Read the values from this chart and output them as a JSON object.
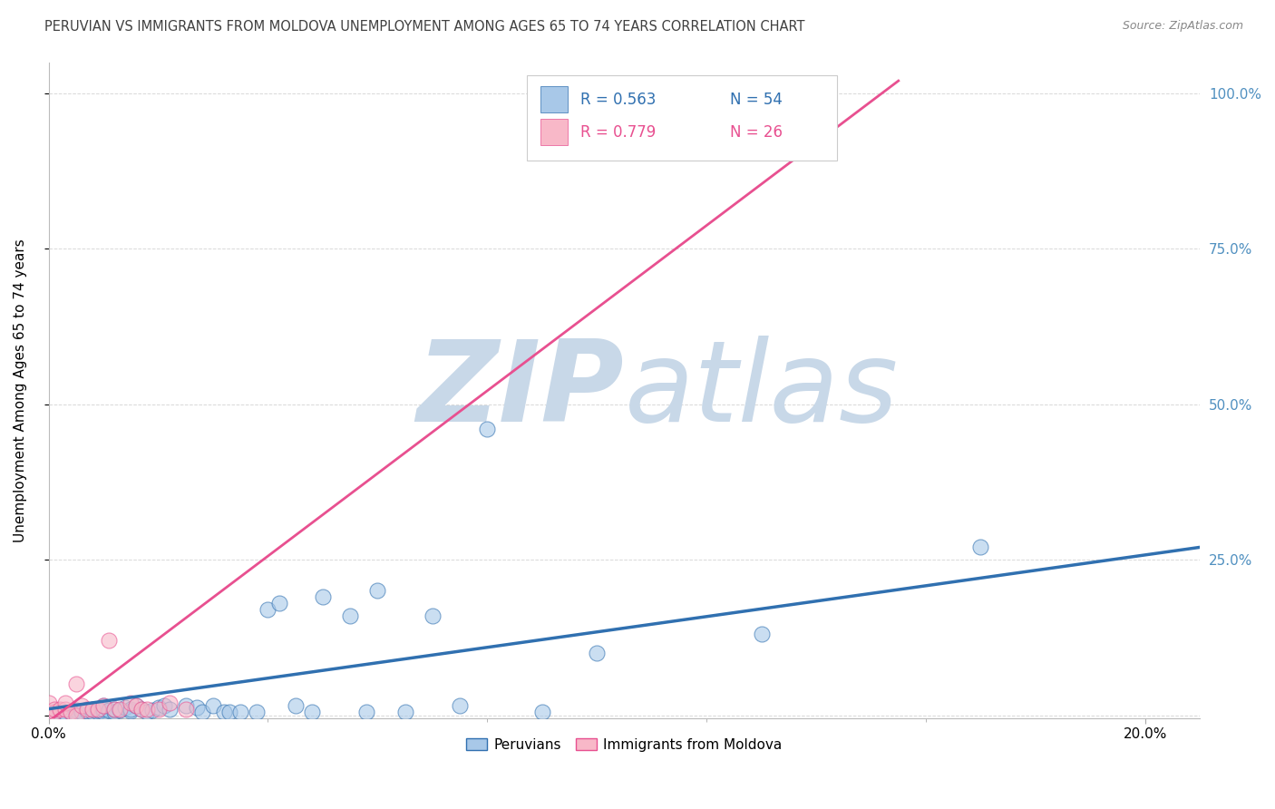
{
  "title": "PERUVIAN VS IMMIGRANTS FROM MOLDOVA UNEMPLOYMENT AMONG AGES 65 TO 74 YEARS CORRELATION CHART",
  "source": "Source: ZipAtlas.com",
  "ylabel": "Unemployment Among Ages 65 to 74 years",
  "x_tick_labels": [
    "0.0%",
    "20.0%"
  ],
  "x_ticks": [
    0.0,
    0.2
  ],
  "y_tick_labels_right": [
    "100.0%",
    "75.0%",
    "50.0%",
    "25.0%",
    ""
  ],
  "y_ticks": [
    1.0,
    0.75,
    0.5,
    0.25,
    0.0
  ],
  "xlim": [
    0.0,
    0.21
  ],
  "ylim": [
    -0.005,
    1.05
  ],
  "legend_r1": "R = 0.563",
  "legend_n1": "N = 54",
  "legend_r2": "R = 0.779",
  "legend_n2": "N = 26",
  "blue_color": "#a8c8e8",
  "blue_line_color": "#3070b0",
  "pink_color": "#f8b8c8",
  "pink_line_color": "#e85090",
  "watermark_zip": "ZIP",
  "watermark_atlas": "atlas",
  "watermark_color": "#c8d8e8",
  "background_color": "#ffffff",
  "grid_color": "#d8d8d8",
  "title_color": "#404040",
  "right_axis_color": "#5090c0",
  "peruvians_x": [
    0.0,
    0.001,
    0.002,
    0.003,
    0.004,
    0.005,
    0.005,
    0.006,
    0.007,
    0.008,
    0.008,
    0.009,
    0.009,
    0.01,
    0.01,
    0.01,
    0.011,
    0.012,
    0.012,
    0.013,
    0.014,
    0.015,
    0.015,
    0.016,
    0.017,
    0.018,
    0.019,
    0.02,
    0.021,
    0.022,
    0.025,
    0.027,
    0.028,
    0.03,
    0.032,
    0.033,
    0.035,
    0.038,
    0.04,
    0.042,
    0.045,
    0.048,
    0.05,
    0.055,
    0.058,
    0.06,
    0.065,
    0.07,
    0.075,
    0.08,
    0.09,
    0.1,
    0.13,
    0.17
  ],
  "peruvians_y": [
    0.0,
    0.005,
    0.002,
    0.003,
    0.005,
    0.008,
    0.003,
    0.005,
    0.006,
    0.005,
    0.01,
    0.005,
    0.008,
    0.005,
    0.01,
    0.015,
    0.008,
    0.005,
    0.01,
    0.008,
    0.012,
    0.006,
    0.01,
    0.015,
    0.01,
    0.005,
    0.008,
    0.012,
    0.015,
    0.01,
    0.015,
    0.012,
    0.005,
    0.015,
    0.005,
    0.005,
    0.005,
    0.005,
    0.17,
    0.18,
    0.015,
    0.005,
    0.19,
    0.16,
    0.005,
    0.2,
    0.005,
    0.16,
    0.015,
    0.46,
    0.005,
    0.1,
    0.13,
    0.27
  ],
  "moldova_x": [
    0.0,
    0.0,
    0.001,
    0.001,
    0.002,
    0.003,
    0.003,
    0.004,
    0.005,
    0.005,
    0.006,
    0.007,
    0.008,
    0.009,
    0.01,
    0.011,
    0.012,
    0.013,
    0.015,
    0.016,
    0.017,
    0.018,
    0.02,
    0.022,
    0.025,
    0.14
  ],
  "moldova_y": [
    0.005,
    0.02,
    0.005,
    0.01,
    0.01,
    0.01,
    0.02,
    0.005,
    0.0,
    0.05,
    0.015,
    0.01,
    0.01,
    0.01,
    0.015,
    0.12,
    0.01,
    0.01,
    0.02,
    0.015,
    0.01,
    0.01,
    0.01,
    0.02,
    0.01,
    0.98
  ],
  "blue_trendline_x": [
    0.0,
    0.21
  ],
  "blue_trendline_y": [
    0.01,
    0.27
  ],
  "pink_trendline_x": [
    0.0,
    0.155
  ],
  "pink_trendline_y": [
    -0.01,
    1.02
  ]
}
